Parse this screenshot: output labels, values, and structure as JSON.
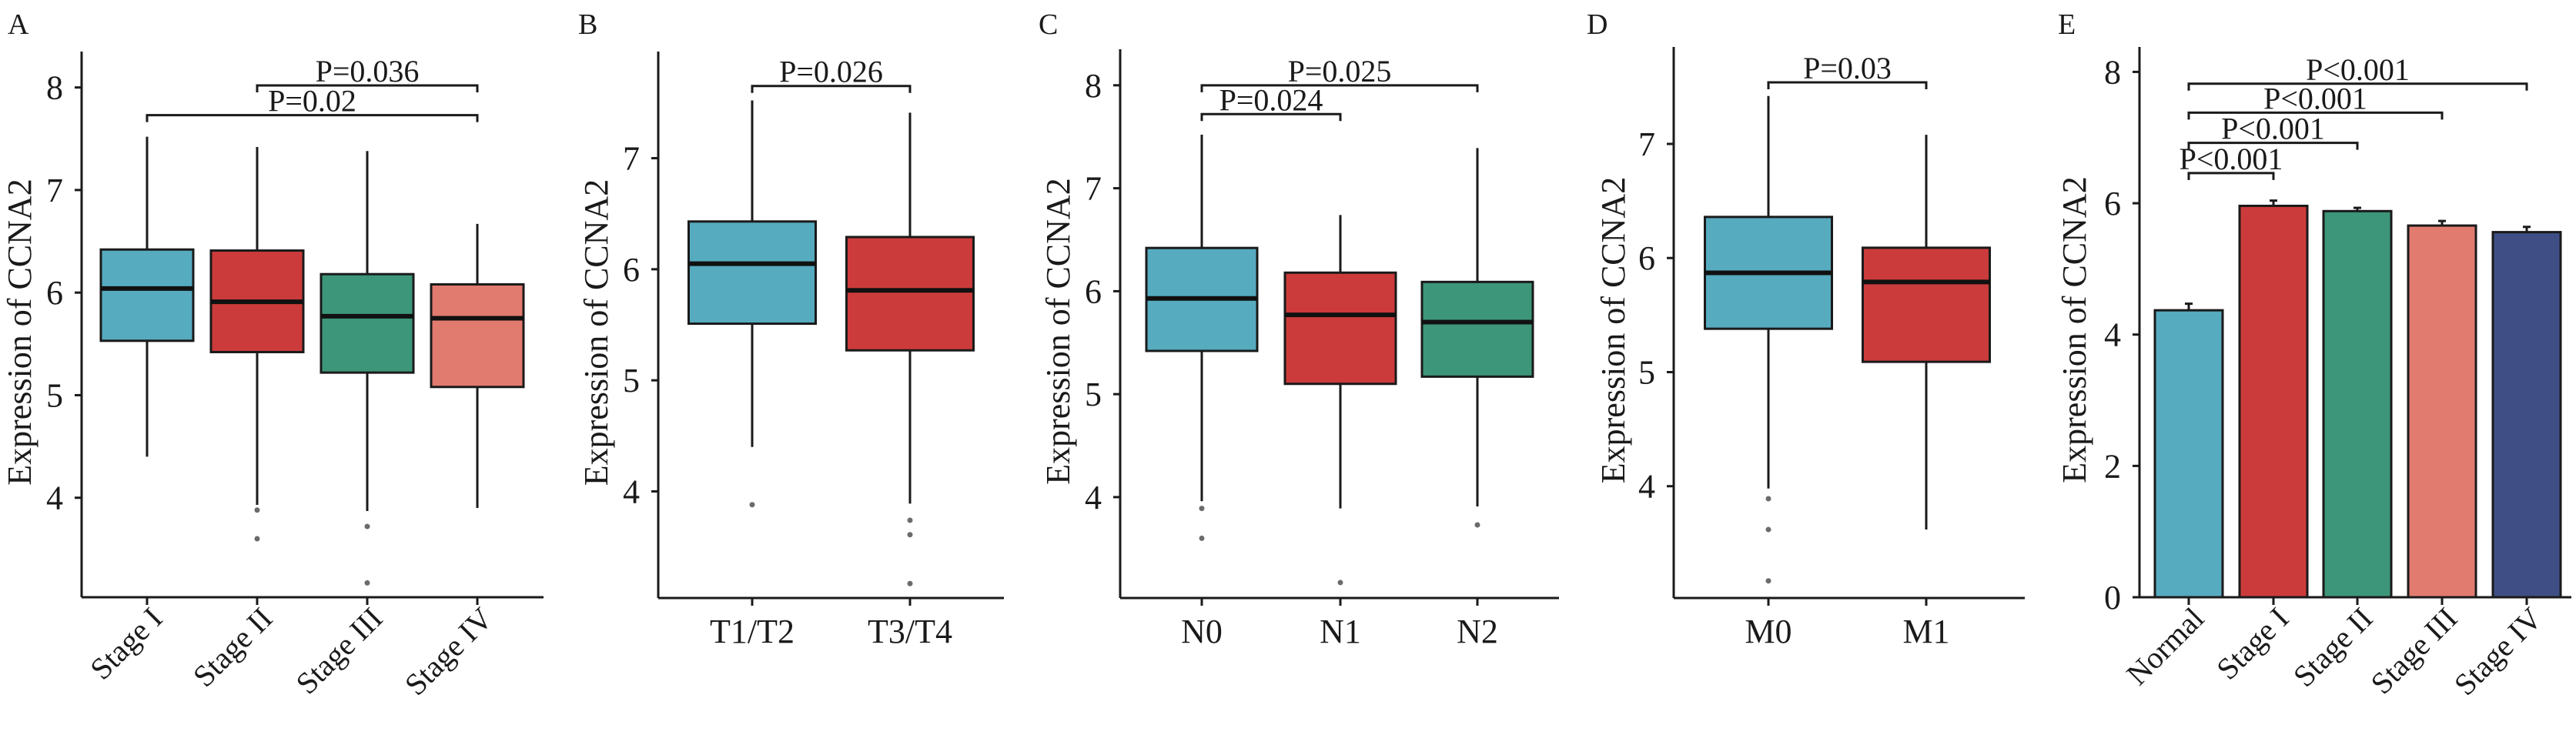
{
  "colors": {
    "teal": "#56abbf",
    "red": "#cc3b3b",
    "green": "#3d967a",
    "salmon": "#e27b6f",
    "navy": "#3f4f86",
    "outlier": "#6b6b6b",
    "axis": "#1a1a1a"
  },
  "chart_data": [
    {
      "panel": "A",
      "type": "boxplot",
      "ylabel": "Expression of CCNA2",
      "xlabel": "",
      "ylim": [
        3.03,
        8.35
      ],
      "yticks": [
        4,
        5,
        6,
        7,
        8
      ],
      "grid": false,
      "xtick_rotation": 45,
      "categories": [
        "Stage I",
        "Stage II",
        "Stage III",
        "Stage IV"
      ],
      "fill": [
        "teal",
        "red",
        "green",
        "salmon"
      ],
      "boxes": [
        {
          "whisker_low": 4.4,
          "q1": 5.53,
          "median": 6.04,
          "q3": 6.42,
          "whisker_high": 7.52,
          "outliers": []
        },
        {
          "whisker_low": 3.93,
          "q1": 5.42,
          "median": 5.91,
          "q3": 6.41,
          "whisker_high": 7.42,
          "outliers": [
            3.88,
            3.6
          ]
        },
        {
          "whisker_low": 3.87,
          "q1": 5.22,
          "median": 5.77,
          "q3": 6.18,
          "whisker_high": 7.38,
          "outliers": [
            3.72,
            3.17
          ]
        },
        {
          "whisker_low": 3.9,
          "q1": 5.08,
          "median": 5.75,
          "q3": 6.08,
          "whisker_high": 6.67,
          "outliers": []
        }
      ],
      "comparisons": [
        {
          "from": "Stage II",
          "to": "Stage IV",
          "y": 8.02,
          "label": "P=0.036"
        },
        {
          "from": "Stage I",
          "to": "Stage IV",
          "y": 7.73,
          "label": "P=0.02"
        }
      ]
    },
    {
      "panel": "B",
      "type": "boxplot",
      "ylabel": "Expression of CCNA2",
      "xlabel": "",
      "ylim": [
        3.04,
        7.96
      ],
      "yticks": [
        4,
        5,
        6,
        7
      ],
      "grid": false,
      "xtick_rotation": 0,
      "categories": [
        "T1/T2",
        "T3/T4"
      ],
      "fill": [
        "teal",
        "red"
      ],
      "boxes": [
        {
          "whisker_low": 4.4,
          "q1": 5.51,
          "median": 6.05,
          "q3": 6.43,
          "whisker_high": 7.52,
          "outliers": [
            3.88
          ]
        },
        {
          "whisker_low": 3.89,
          "q1": 5.27,
          "median": 5.81,
          "q3": 6.29,
          "whisker_high": 7.41,
          "outliers": [
            3.74,
            3.61,
            3.17
          ]
        }
      ],
      "comparisons": [
        {
          "from": "T1/T2",
          "to": "T3/T4",
          "y": 7.65,
          "label": "P=0.026"
        }
      ]
    },
    {
      "panel": "C",
      "type": "boxplot",
      "ylabel": "Expression of CCNA2",
      "xlabel": "",
      "ylim": [
        3.02,
        8.35
      ],
      "yticks": [
        4,
        5,
        6,
        7,
        8
      ],
      "grid": false,
      "xtick_rotation": 0,
      "categories": [
        "N0",
        "N1",
        "N2"
      ],
      "fill": [
        "teal",
        "red",
        "green"
      ],
      "boxes": [
        {
          "whisker_low": 3.96,
          "q1": 5.42,
          "median": 5.93,
          "q3": 6.42,
          "whisker_high": 7.52,
          "outliers": [
            3.89,
            3.6
          ]
        },
        {
          "whisker_low": 3.89,
          "q1": 5.1,
          "median": 5.77,
          "q3": 6.18,
          "whisker_high": 6.74,
          "outliers": [
            3.17
          ]
        },
        {
          "whisker_low": 3.91,
          "q1": 5.17,
          "median": 5.7,
          "q3": 6.09,
          "whisker_high": 7.39,
          "outliers": [
            3.73
          ]
        }
      ],
      "comparisons": [
        {
          "from": "N0",
          "to": "N2",
          "y": 8.0,
          "label": "P=0.025"
        },
        {
          "from": "N0",
          "to": "N1",
          "y": 7.72,
          "label": "P=0.024"
        }
      ]
    },
    {
      "panel": "D",
      "type": "boxplot",
      "ylabel": "Expression of CCNA2",
      "xlabel": "",
      "ylim": [
        3.02,
        7.85
      ],
      "yticks": [
        4,
        5,
        6,
        7
      ],
      "grid": false,
      "xtick_rotation": 0,
      "categories": [
        "M0",
        "M1"
      ],
      "fill": [
        "teal",
        "red"
      ],
      "boxes": [
        {
          "whisker_low": 3.98,
          "q1": 5.38,
          "median": 5.87,
          "q3": 6.36,
          "whisker_high": 7.42,
          "outliers": [
            3.89,
            3.62,
            3.17
          ]
        },
        {
          "whisker_low": 3.62,
          "q1": 5.09,
          "median": 5.79,
          "q3": 6.09,
          "whisker_high": 7.08,
          "outliers": []
        }
      ],
      "comparisons": [
        {
          "from": "M0",
          "to": "M1",
          "y": 7.54,
          "label": "P=0.03"
        }
      ]
    },
    {
      "panel": "E",
      "type": "bar",
      "ylabel": "Expression of CCNA2",
      "xlabel": "",
      "ylim": [
        0,
        8.38
      ],
      "yticks": [
        0,
        2,
        4,
        6,
        8
      ],
      "grid": false,
      "xtick_rotation": 45,
      "categories": [
        "Normal",
        "Stage I",
        "Stage II",
        "Stage III",
        "Stage IV"
      ],
      "fill": [
        "teal",
        "red",
        "green",
        "salmon",
        "navy"
      ],
      "values": [
        4.37,
        5.96,
        5.88,
        5.66,
        5.56
      ],
      "error_upper": [
        4.47,
        6.04,
        5.93,
        5.73,
        5.64
      ],
      "comparisons": [
        {
          "from": "Normal",
          "to": "Stage IV",
          "y": 7.82,
          "label": "P<0.001"
        },
        {
          "from": "Normal",
          "to": "Stage III",
          "y": 7.38,
          "label": "P<0.001"
        },
        {
          "from": "Normal",
          "to": "Stage II",
          "y": 6.92,
          "label": "P<0.001"
        },
        {
          "from": "Normal",
          "to": "Stage I",
          "y": 6.46,
          "label": "P<0.001"
        }
      ]
    }
  ]
}
